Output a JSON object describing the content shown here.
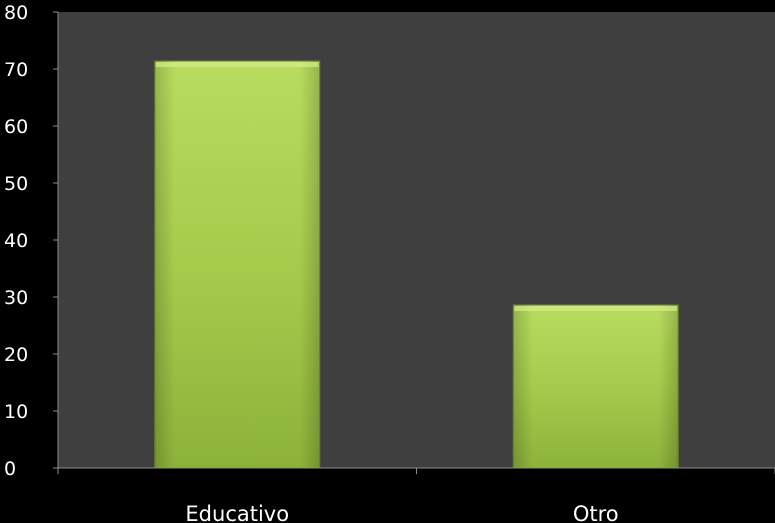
{
  "chart_data": {
    "type": "bar",
    "categories": [
      "Educativo",
      "Otro"
    ],
    "values": [
      71.4,
      28.6
    ],
    "title": "",
    "xlabel": "",
    "ylabel": "",
    "ylim": [
      0,
      80
    ],
    "yticks": [
      0,
      10,
      20,
      30,
      40,
      50,
      60,
      70,
      80
    ],
    "grid": false,
    "legend": "none",
    "colors": {
      "background": "#000000",
      "plot_area": "#3f3f3f",
      "axis": "#8c8c8c",
      "text": "#ffffff",
      "bar_top": "#b4d95a",
      "bar_bottom": "#8fb33a",
      "bar_edge": "#6f8f2a"
    }
  }
}
